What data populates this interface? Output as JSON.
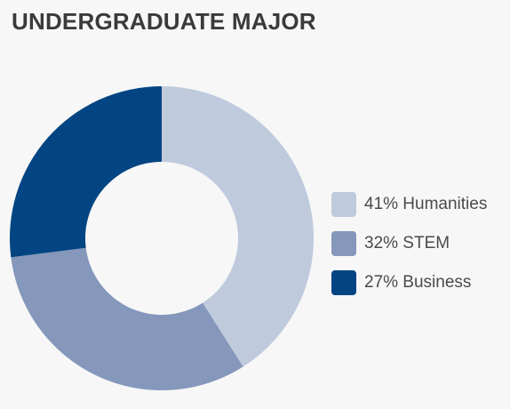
{
  "chart_data": {
    "type": "pie",
    "title": "UNDERGRADUATE MAJOR",
    "categories": [
      "Humanities",
      "STEM",
      "Business"
    ],
    "values": [
      41,
      32,
      27
    ],
    "unit": "%",
    "legend_position": "right",
    "legend_labels": [
      "41% Humanities",
      "32% STEM",
      "27% Business"
    ],
    "colors": [
      "#bfcadd",
      "#8597bb",
      "#034582"
    ],
    "donut": true
  }
}
